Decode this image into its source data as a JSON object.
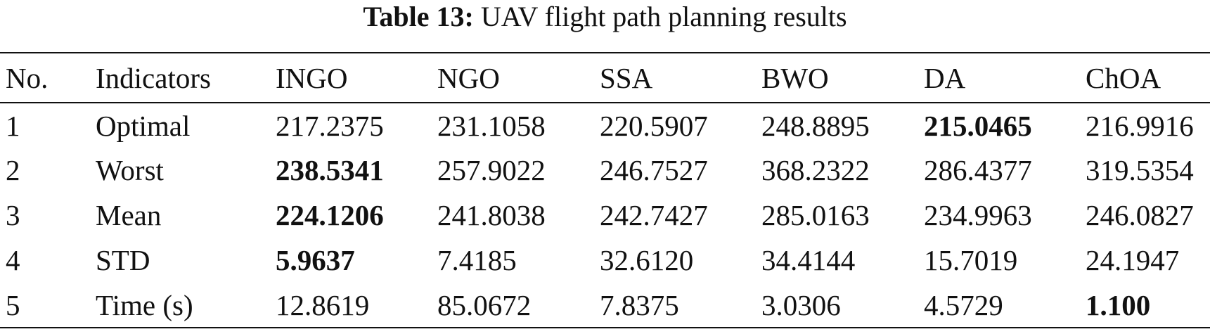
{
  "caption": {
    "label": "Table 13:",
    "title": "UAV flight path planning results"
  },
  "table": {
    "header": [
      "No.",
      "Indicators",
      "INGO",
      "NGO",
      "SSA",
      "BWO",
      "DA",
      "ChOA"
    ],
    "rows": [
      [
        "1",
        "Optimal",
        "217.2375",
        "231.1058",
        "220.5907",
        "248.8895",
        "215.0465",
        "216.9916"
      ],
      [
        "2",
        "Worst",
        "238.5341",
        "257.9022",
        "246.7527",
        "368.2322",
        "286.4377",
        "319.5354"
      ],
      [
        "3",
        "Mean",
        "224.1206",
        "241.8038",
        "242.7427",
        "285.0163",
        "234.9963",
        "246.0827"
      ],
      [
        "4",
        "STD",
        "5.9637",
        "7.4185",
        "32.6120",
        "34.4144",
        "15.7019",
        "24.1947"
      ],
      [
        "5",
        "Time (s)",
        "12.8619",
        "85.0672",
        "7.8375",
        "3.0306",
        "4.5729",
        "1.100"
      ]
    ]
  }
}
